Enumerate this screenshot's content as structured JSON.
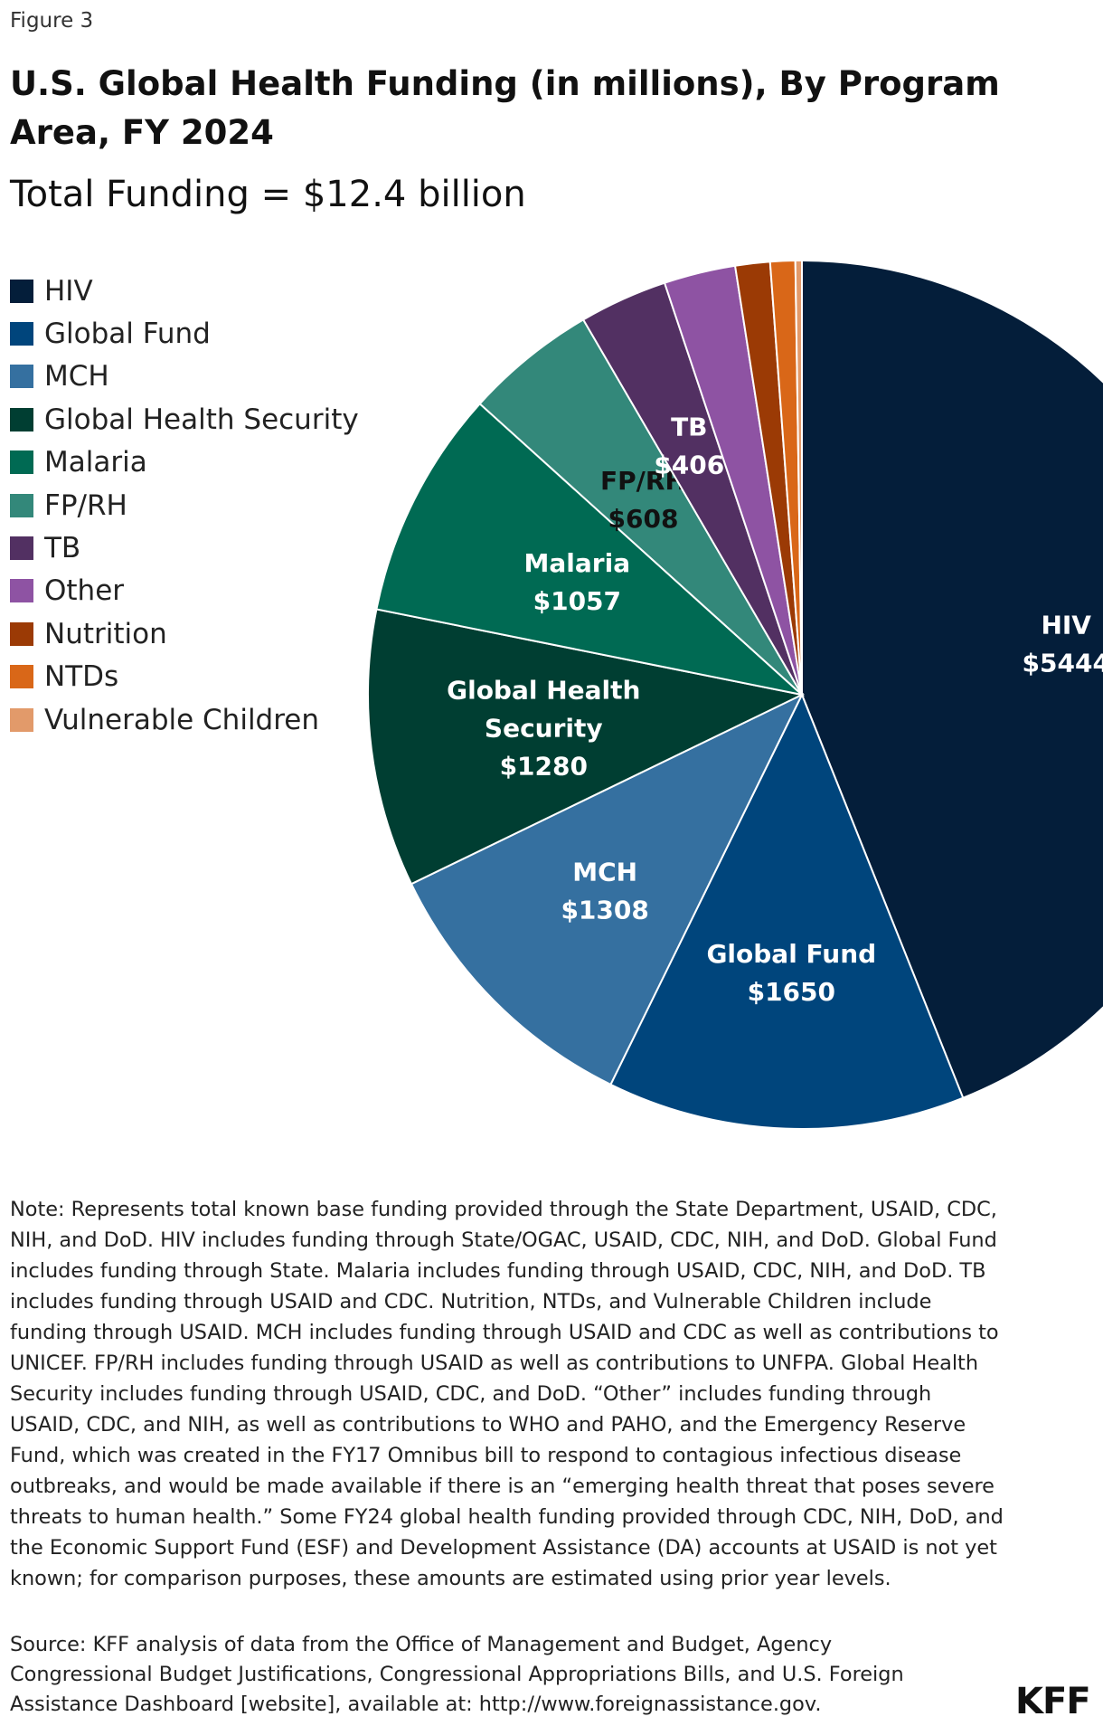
{
  "figure_label": "Figure 3",
  "chart_data": {
    "type": "pie",
    "title": "U.S. Global Health Funding (in millions), By Program Area, FY 2024",
    "subtitle": "Total Funding = $12.4 billion",
    "legend_position": "top-left",
    "slices": [
      {
        "name": "HIV",
        "value": 5444,
        "label_name": "HIV",
        "label_value": "$5444",
        "color": "#041e3a",
        "text_color": "#ffffff"
      },
      {
        "name": "Global Fund",
        "value": 1650,
        "label_name": "Global Fund",
        "label_value": "$1650",
        "color": "#00457c",
        "text_color": "#ffffff"
      },
      {
        "name": "MCH",
        "value": 1308,
        "label_name": "MCH",
        "label_value": "$1308",
        "color": "#3570a0",
        "text_color": "#ffffff"
      },
      {
        "name": "Global Health Security",
        "value": 1280,
        "label_name": "Global Health Security",
        "label_value": "$1280",
        "color": "#003e32",
        "text_color": "#ffffff"
      },
      {
        "name": "Malaria",
        "value": 1057,
        "label_name": "Malaria",
        "label_value": "$1057",
        "color": "#006a53",
        "text_color": "#ffffff"
      },
      {
        "name": "FP/RH",
        "value": 608,
        "label_name": "FP/RH",
        "label_value": "$608",
        "color": "#33887a",
        "text_color": "#111111"
      },
      {
        "name": "TB",
        "value": 406,
        "label_name": "TB",
        "label_value": "$406",
        "color": "#523062",
        "text_color": "#ffffff"
      },
      {
        "name": "Other",
        "value": 330,
        "label_name": "",
        "label_value": "",
        "color": "#8e53a3",
        "text_color": "#ffffff"
      },
      {
        "name": "Nutrition",
        "value": 160,
        "label_name": "",
        "label_value": "",
        "color": "#9b3a05",
        "text_color": "#ffffff"
      },
      {
        "name": "NTDs",
        "value": 115,
        "label_name": "",
        "label_value": "",
        "color": "#d96718",
        "text_color": "#ffffff"
      },
      {
        "name": "Vulnerable Children",
        "value": 30,
        "label_name": "",
        "label_value": "",
        "color": "#e29a6a",
        "text_color": "#ffffff"
      }
    ]
  },
  "note": "Note: Represents total known base funding provided through the State Department, USAID, CDC, NIH, and DoD. HIV includes funding through State/OGAC, USAID, CDC, NIH, and DoD. Global Fund includes funding through State. Malaria includes funding through USAID, CDC, NIH, and DoD. TB includes funding through USAID and CDC. Nutrition, NTDs, and Vulnerable Children include funding through USAID. MCH includes funding through USAID and CDC as well as contributions to UNICEF. FP/RH includes funding through USAID as well as contributions to UNFPA. Global Health Security includes funding through USAID, CDC, and DoD. “Other” includes funding through USAID, CDC, and NIH, as well as contributions to WHO and PAHO, and the Emergency Reserve Fund, which was created in the FY17 Omnibus bill to respond to contagious infectious disease outbreaks, and would be made available if there is an “emerging health threat that poses severe threats to human health.” Some FY24 global health funding provided through CDC, NIH, DoD, and the Economic Support Fund (ESF) and Development Assistance (DA) accounts at USAID is not yet known; for comparison purposes, these amounts are estimated using prior year levels.",
  "source": "Source: KFF analysis of data from the Office of Management and Budget, Agency Congressional Budget Justifications, Congressional Appropriations Bills, and U.S. Foreign Assistance Dashboard [website], available at: http://www.foreignassistance.gov.",
  "logo_text": "KFF"
}
